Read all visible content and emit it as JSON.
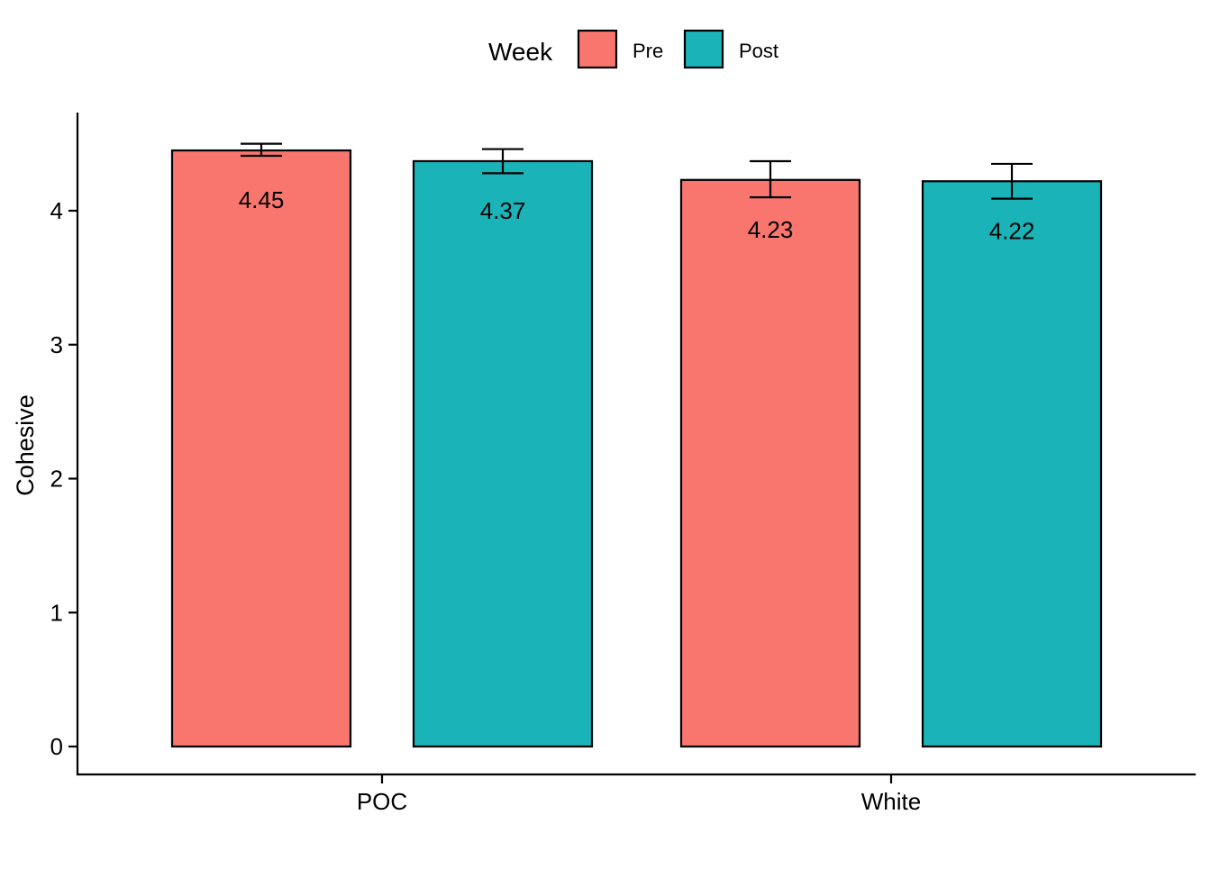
{
  "chart_data": {
    "type": "bar",
    "title": "",
    "xlabel": "",
    "ylabel": "Cohesive",
    "categories": [
      "POC",
      "White"
    ],
    "ylim": [
      0,
      4.6
    ],
    "yticks": [
      0,
      1,
      2,
      3,
      4
    ],
    "legend": {
      "title": "Week",
      "position": "top"
    },
    "grid": false,
    "series": [
      {
        "name": "Pre",
        "color": "#F8766D",
        "values": [
          4.45,
          4.23
        ],
        "labels": [
          "4.45",
          "4.23"
        ],
        "error_low": [
          4.41,
          4.1
        ],
        "error_high": [
          4.5,
          4.37
        ]
      },
      {
        "name": "Post",
        "color": "#1AB4B8",
        "values": [
          4.37,
          4.22
        ],
        "labels": [
          "4.37",
          "4.22"
        ],
        "error_low": [
          4.28,
          4.09
        ],
        "error_high": [
          4.46,
          4.35
        ]
      }
    ]
  }
}
